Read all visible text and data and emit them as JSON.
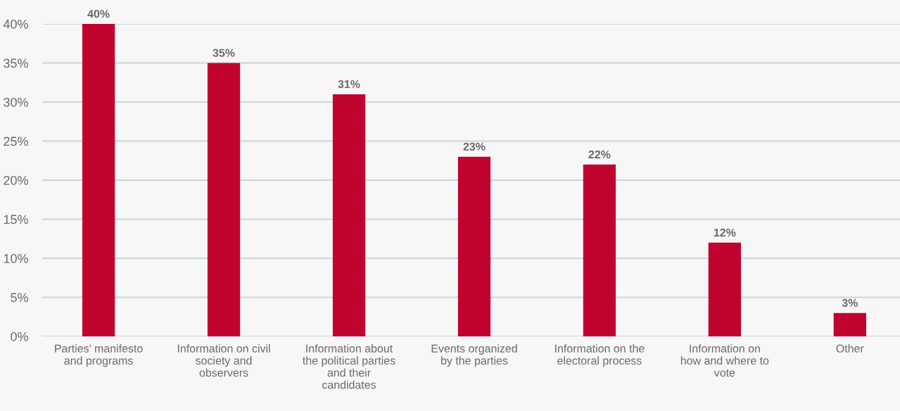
{
  "chart_data": {
    "type": "bar",
    "categories": [
      "Parties’ manifesto\nand programs",
      "Information on civil\nsociety and\nobservers",
      "Information about\nthe political parties\nand their\ncandidates",
      "Events organized\nby the parties",
      "Information on the\nelectoral process",
      "Information on\nhow and where to\nvote",
      "Other"
    ],
    "values": [
      40,
      35,
      31,
      23,
      22,
      12,
      3
    ],
    "value_labels": [
      "40%",
      "35%",
      "31%",
      "23%",
      "22%",
      "12%",
      "3%"
    ],
    "color": "#c0042f",
    "ylim": [
      0,
      40
    ],
    "yticks": [
      {
        "value": 0,
        "label": "0%"
      },
      {
        "value": 5,
        "label": "5%"
      },
      {
        "value": 10,
        "label": "10%"
      },
      {
        "value": 15,
        "label": "15%"
      },
      {
        "value": 20,
        "label": "20%"
      },
      {
        "value": 25,
        "label": "25%"
      },
      {
        "value": 30,
        "label": "30%"
      },
      {
        "value": 35,
        "label": "35%"
      },
      {
        "value": 40,
        "label": "40%"
      }
    ],
    "grid": "y",
    "legend": false
  }
}
